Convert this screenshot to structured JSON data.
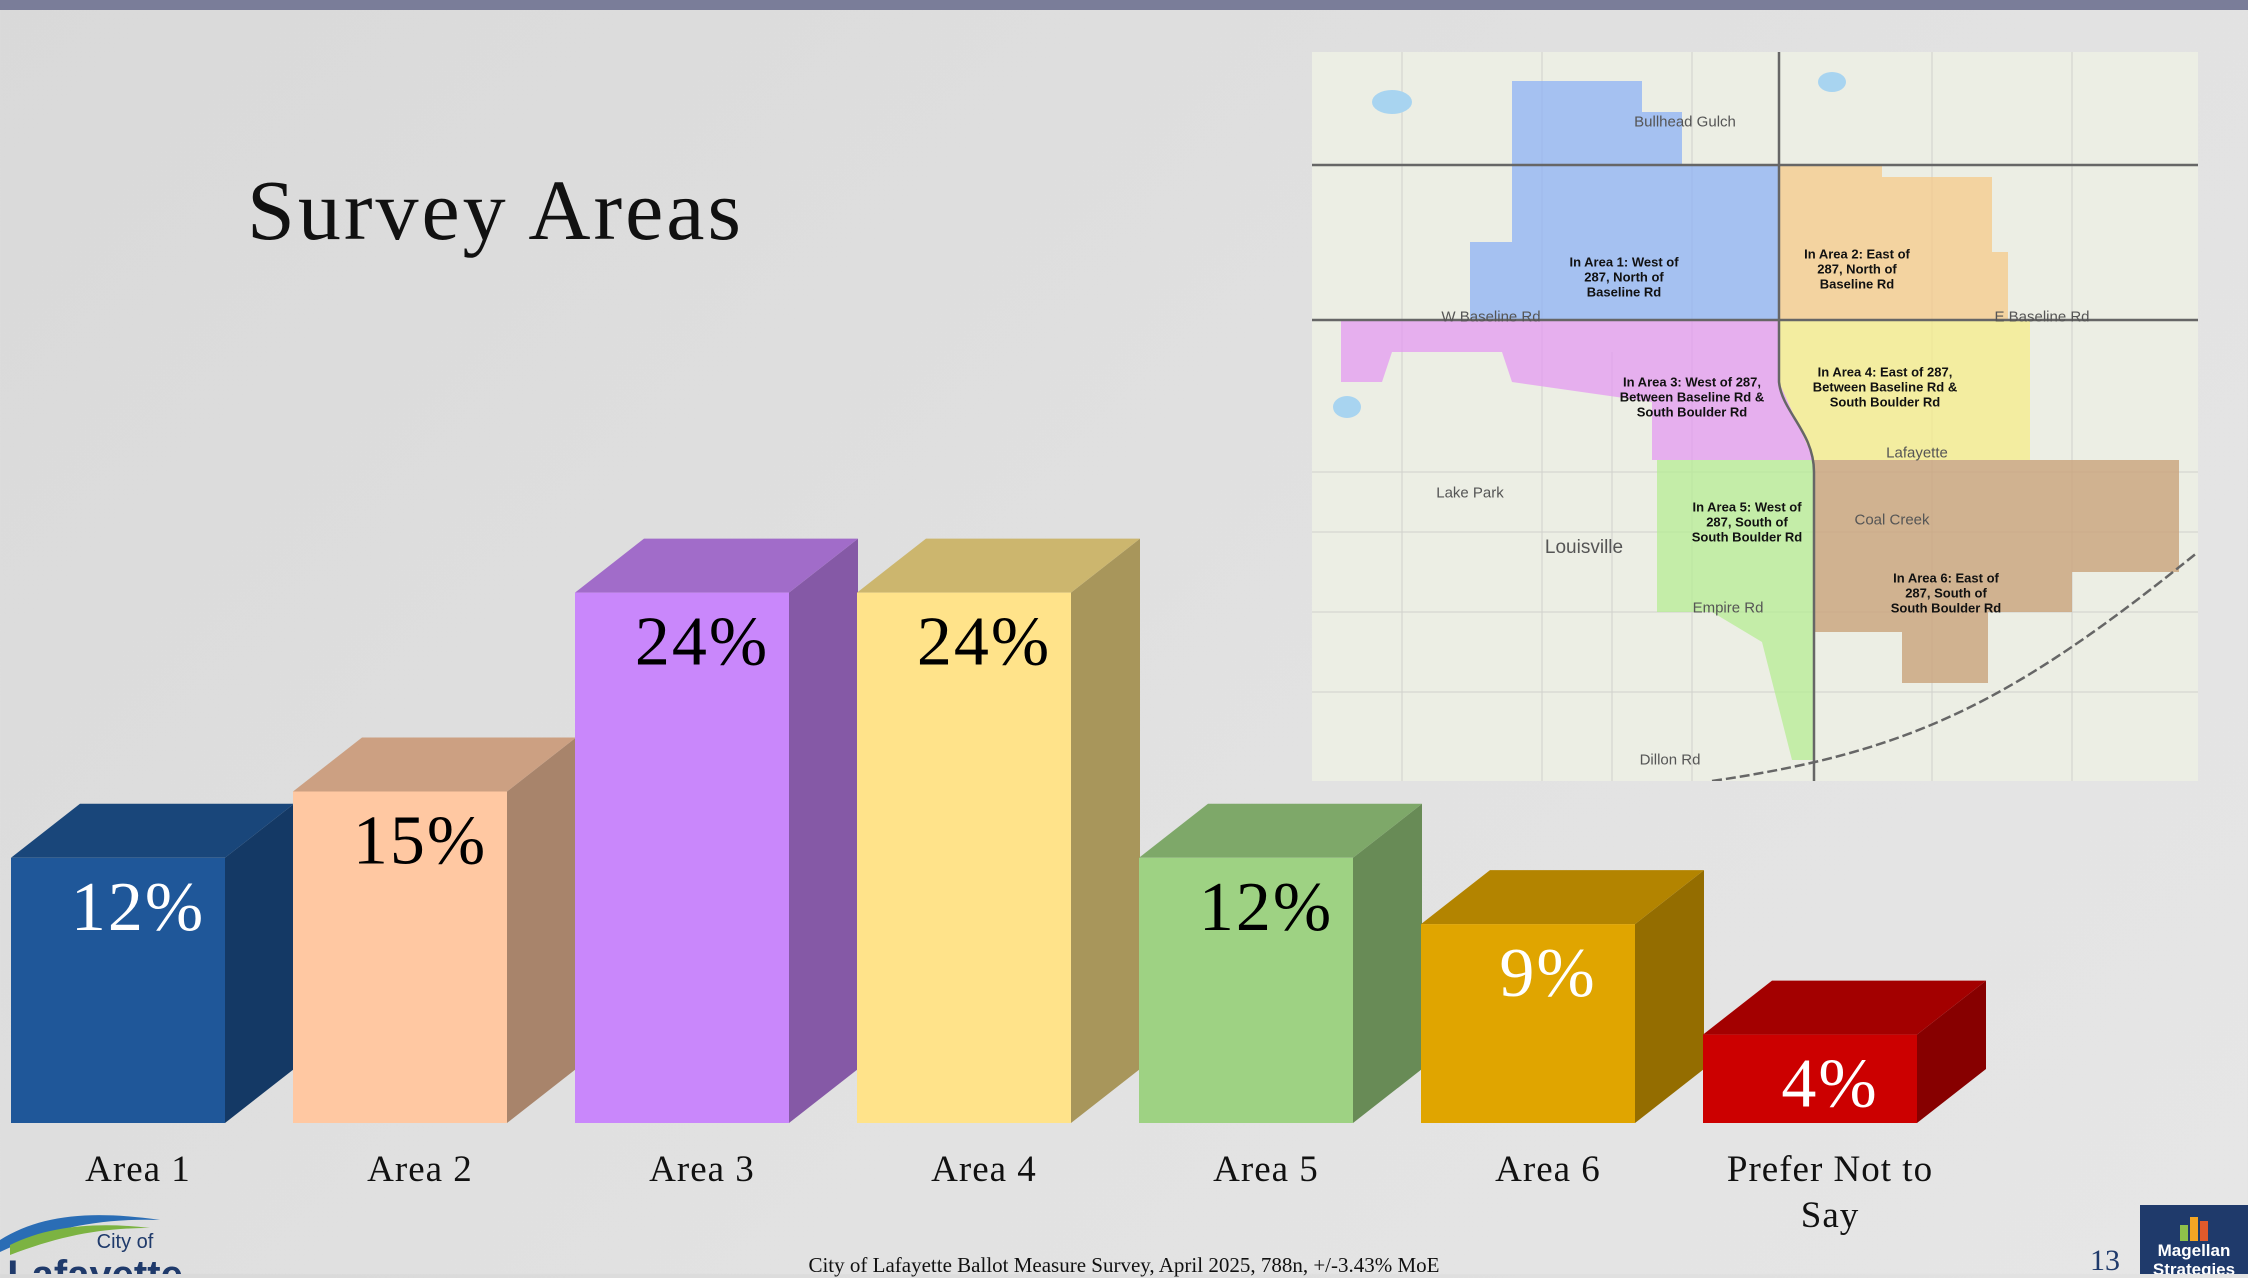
{
  "title": "Survey Areas",
  "chart_data": {
    "type": "bar3d",
    "categories": [
      "Area 1",
      "Area 2",
      "Area 3",
      "Area 4",
      "Area 5",
      "Area 6",
      "Prefer Not to Say"
    ],
    "values": [
      12,
      15,
      24,
      24,
      12,
      9,
      4
    ],
    "value_labels": [
      "12%",
      "15%",
      "24%",
      "24%",
      "12%",
      "9%",
      "4%"
    ],
    "colors": [
      "#1f5799",
      "#ffc8a2",
      "#c987fb",
      "#ffe38a",
      "#9ed283",
      "#e0a500",
      "#cc0000"
    ],
    "label_colors": [
      "#ffffff",
      "#000000",
      "#000000",
      "#000000",
      "#000000",
      "#ffffff",
      "#ffffff"
    ]
  },
  "map": {
    "area_labels": [
      "In Area 1: West of 287, North of Baseline Rd",
      "In Area 2: East of 287, North of Baseline Rd",
      "In Area 3: West of 287, Between Baseline Rd & South Boulder Rd",
      "In Area 4: East of 287, Between Baseline Rd & South Boulder Rd",
      "In Area 5: West of 287, South of South Boulder Rd",
      "In Area 6: East of 287, South of South Boulder Rd"
    ],
    "place_labels": [
      "Louisville",
      "Lafayette",
      "Lake Park",
      "W Baseline Rd",
      "E Baseline Rd",
      "Empire Rd",
      "Dillon Rd",
      "Bullhead Gulch",
      "Coal Creek"
    ]
  },
  "footer": {
    "source": "City of Lafayette Ballot Measure Survey, April 2025, 788n, +/-3.43% MoE",
    "page": "13",
    "city_logo_top": "City of",
    "city_logo_bottom": "Lafayette",
    "sponsor_logo": "Magellan Strategies"
  }
}
